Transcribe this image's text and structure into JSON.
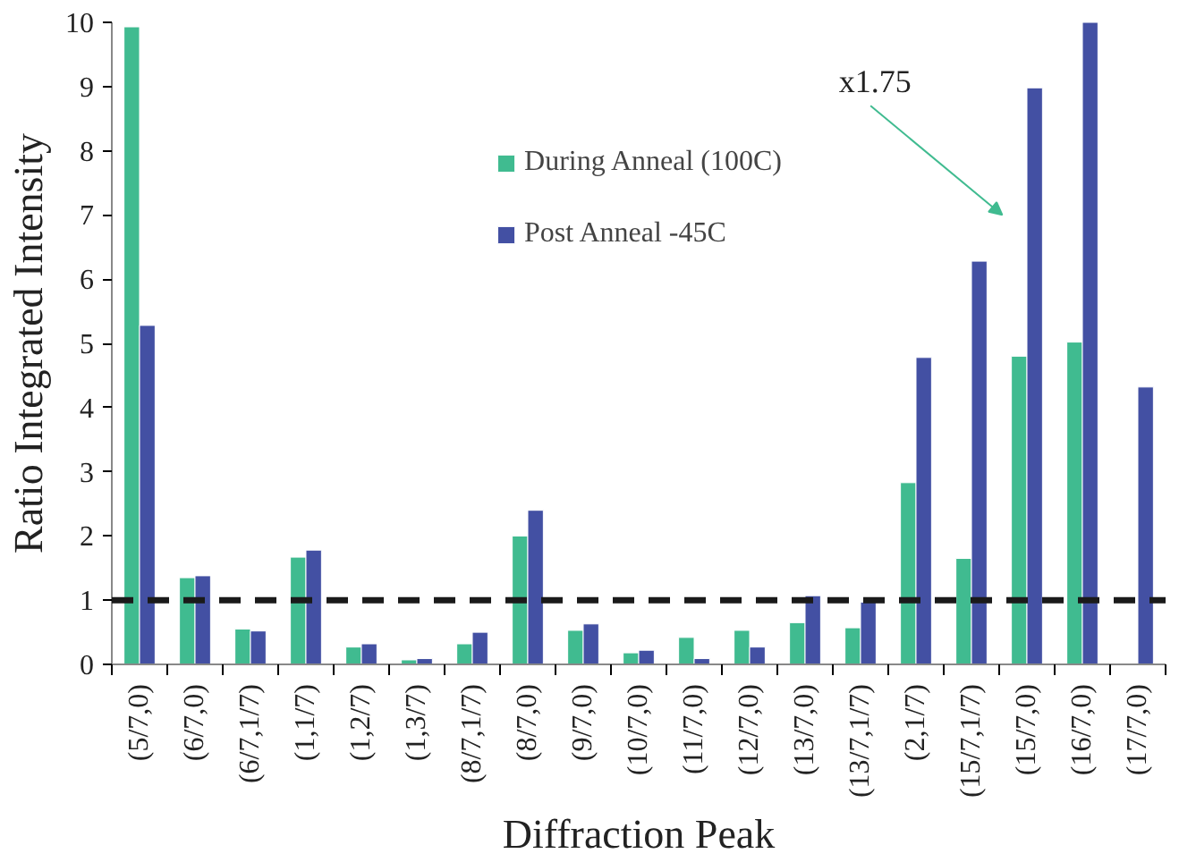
{
  "chart_data": {
    "type": "bar",
    "xlabel": "Diffraction Peak",
    "ylabel": "Ratio Integrated Intensity",
    "categories": [
      "(5/7,0)",
      "(6/7,0)",
      "(6/7,1/7)",
      "(1,1/7)",
      "(1,2/7)",
      "(1,3/7)",
      "(8/7,1/7)",
      "(8/7,0)",
      "(9/7,0)",
      "(10/7,0)",
      "(11/7,0)",
      "(12/7,0)",
      "(13/7,0)",
      "(13/7,1/7)",
      "(2,1/7)",
      "(15/7,1/7)",
      "(15/7,0)",
      "(16/7,0)",
      "(17/7,0)"
    ],
    "series": [
      {
        "name": "During Anneal (100C)",
        "color": "#40bb90",
        "values": [
          9.93,
          1.35,
          0.55,
          1.67,
          0.27,
          0.07,
          0.32,
          2.0,
          0.53,
          0.18,
          0.42,
          0.53,
          0.65,
          0.57,
          2.83,
          1.65,
          4.8,
          5.02,
          null
        ]
      },
      {
        "name": "Post Anneal -45C",
        "color": "#4350a3",
        "values": [
          5.28,
          1.38,
          0.52,
          1.78,
          0.32,
          0.09,
          0.5,
          2.4,
          0.63,
          0.22,
          0.09,
          0.27,
          1.07,
          0.97,
          4.78,
          6.28,
          8.98,
          10.0,
          4.32
        ]
      }
    ],
    "ylim": [
      0,
      10
    ],
    "yticks": [
      0,
      1,
      2,
      3,
      4,
      5,
      6,
      7,
      8,
      9,
      10
    ],
    "grid": false,
    "legend": "top",
    "ref_lines": [
      {
        "axis": "y",
        "value": 1,
        "label": null,
        "color": "#1a1a1a",
        "line_style": "dashed"
      }
    ],
    "annotations": [
      "x1.75"
    ]
  }
}
